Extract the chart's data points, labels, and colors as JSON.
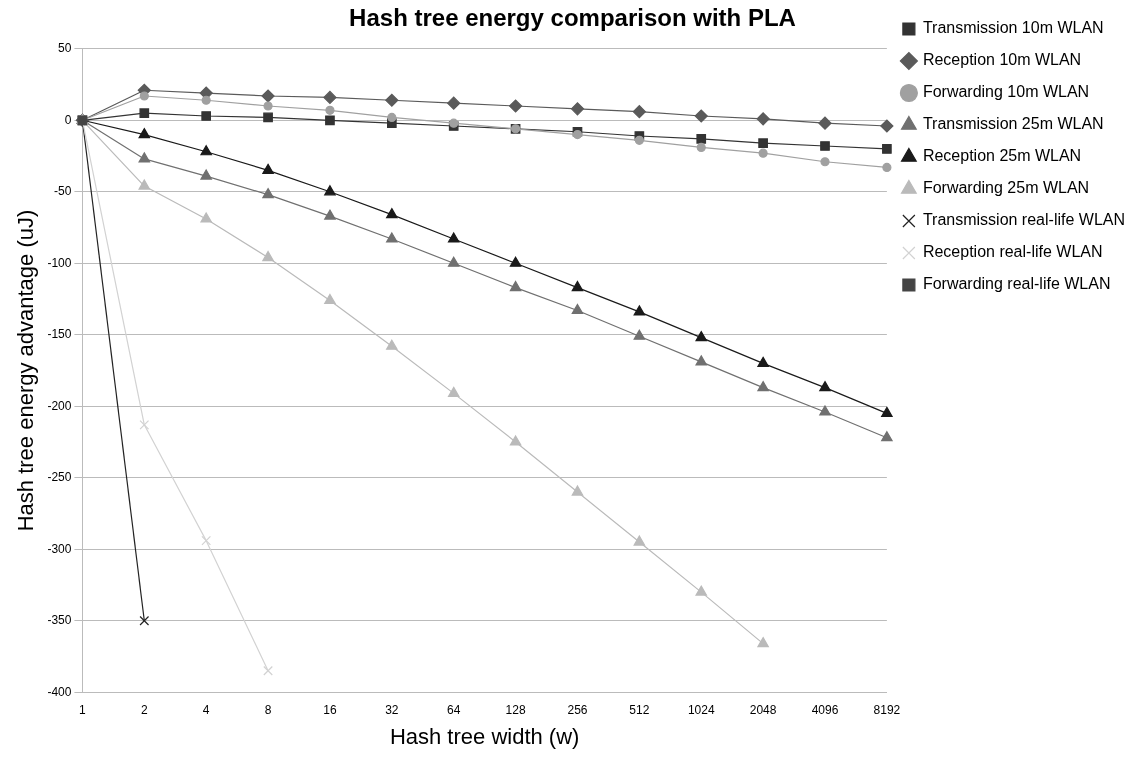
{
  "chart_data": {
    "type": "line",
    "title": "Hash tree energy comparison with PLA",
    "xlabel": "Hash tree width (w)",
    "ylabel": "Hash tree energy advantage (uJ)",
    "categories": [
      "1",
      "2",
      "4",
      "8",
      "16",
      "32",
      "64",
      "128",
      "256",
      "512",
      "1024",
      "2048",
      "4096",
      "8192"
    ],
    "ylim": [
      -400,
      50
    ],
    "yticks": [
      -400,
      -350,
      -300,
      -250,
      -200,
      -150,
      -100,
      -50,
      0,
      50
    ],
    "grid": "y",
    "legend": "right",
    "series": [
      {
        "name": "Transmission 10m WLAN",
        "color": "#333333",
        "marker": "square",
        "values": [
          0,
          5,
          3,
          2,
          0,
          -2,
          -4,
          -6,
          -8,
          -11,
          -13,
          -16,
          -18,
          -20
        ]
      },
      {
        "name": "Reception 10m WLAN",
        "color": "#5a5a5a",
        "marker": "diamond",
        "values": [
          0,
          21,
          19,
          17,
          16,
          14,
          12,
          10,
          8,
          6,
          3,
          1,
          -2,
          -4
        ]
      },
      {
        "name": "Forwarding 10m WLAN",
        "color": "#a0a0a0",
        "marker": "circle",
        "values": [
          0,
          17,
          14,
          10,
          7,
          2,
          -2,
          -6,
          -10,
          -14,
          -19,
          -23,
          -29,
          -33
        ]
      },
      {
        "name": "Transmission 25m WLAN",
        "color": "#707070",
        "marker": "triangle",
        "values": [
          0,
          -27,
          -39,
          -52,
          -67,
          -83,
          -100,
          -117,
          -133,
          -151,
          -169,
          -187,
          -204,
          -222
        ]
      },
      {
        "name": "Reception 25m WLAN",
        "color": "#1a1a1a",
        "marker": "triangle",
        "values": [
          0,
          -10,
          -22,
          -35,
          -50,
          -66,
          -83,
          -100,
          -117,
          -134,
          -152,
          -170,
          -187,
          -205
        ]
      },
      {
        "name": "Forwarding 25m WLAN",
        "color": "#bababa",
        "marker": "triangle",
        "values": [
          0,
          -46,
          -69,
          -96,
          -126,
          -158,
          -191,
          -225,
          -260,
          -295,
          -330,
          -366,
          null,
          null
        ]
      },
      {
        "name": "Transmission real-life WLAN",
        "color": "#222222",
        "marker": "cross",
        "values": [
          0,
          -350,
          null,
          null,
          null,
          null,
          null,
          null,
          null,
          null,
          null,
          null,
          null,
          null
        ]
      },
      {
        "name": "Reception real-life WLAN",
        "color": "#d2d2d2",
        "marker": "cross",
        "values": [
          0,
          -213,
          -294,
          -385,
          null,
          null,
          null,
          null,
          null,
          null,
          null,
          null,
          null,
          null
        ]
      },
      {
        "name": "Forwarding real-life WLAN",
        "color": "#444444",
        "marker": "square",
        "values": [
          0,
          null,
          null,
          null,
          null,
          null,
          null,
          null,
          null,
          null,
          null,
          null,
          null,
          null
        ]
      }
    ]
  }
}
